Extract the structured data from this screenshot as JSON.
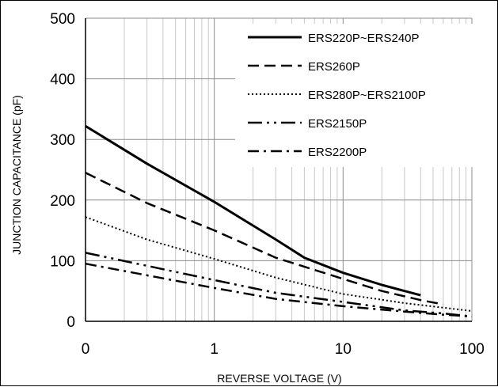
{
  "chart_data": {
    "type": "line",
    "title": "",
    "xlabel": "REVERSE VOLTAGE (V)",
    "ylabel": "JUNCTION CAPACITANCE (pF)",
    "x_scale": "log",
    "xlim": [
      0.1,
      100
    ],
    "ylim": [
      0,
      500
    ],
    "x_tick_labels": [
      "0",
      "1",
      "10",
      "100"
    ],
    "y_tick_labels": [
      "0",
      "100",
      "200",
      "300",
      "400",
      "500"
    ],
    "grid": "on",
    "legend_position": "top-right",
    "series": [
      {
        "name": "ERS220P~ERS240P",
        "style": "solid",
        "x": [
          0.1,
          0.3,
          1,
          3,
          5,
          10,
          20,
          40
        ],
        "y": [
          322,
          260,
          197,
          135,
          105,
          80,
          60,
          43
        ]
      },
      {
        "name": "ERS260P",
        "style": "dashed",
        "x": [
          0.1,
          0.3,
          1,
          3,
          10,
          20,
          40,
          60
        ],
        "y": [
          245,
          195,
          150,
          105,
          70,
          50,
          35,
          28
        ]
      },
      {
        "name": "ERS280P~ERS2100P",
        "style": "dotted",
        "x": [
          0.1,
          0.3,
          1,
          3,
          10,
          30,
          100
        ],
        "y": [
          172,
          135,
          103,
          72,
          45,
          30,
          17
        ]
      },
      {
        "name": "ERS2150P",
        "style": "long-dash-dot-dot",
        "x": [
          0.1,
          1,
          3,
          10,
          30,
          60,
          100
        ],
        "y": [
          113,
          68,
          47,
          32,
          18,
          13,
          8
        ]
      },
      {
        "name": "ERS2200P",
        "style": "dash-dot",
        "x": [
          0.1,
          1,
          3,
          10,
          30,
          60,
          100
        ],
        "y": [
          95,
          55,
          37,
          25,
          16,
          11,
          8
        ]
      }
    ]
  }
}
